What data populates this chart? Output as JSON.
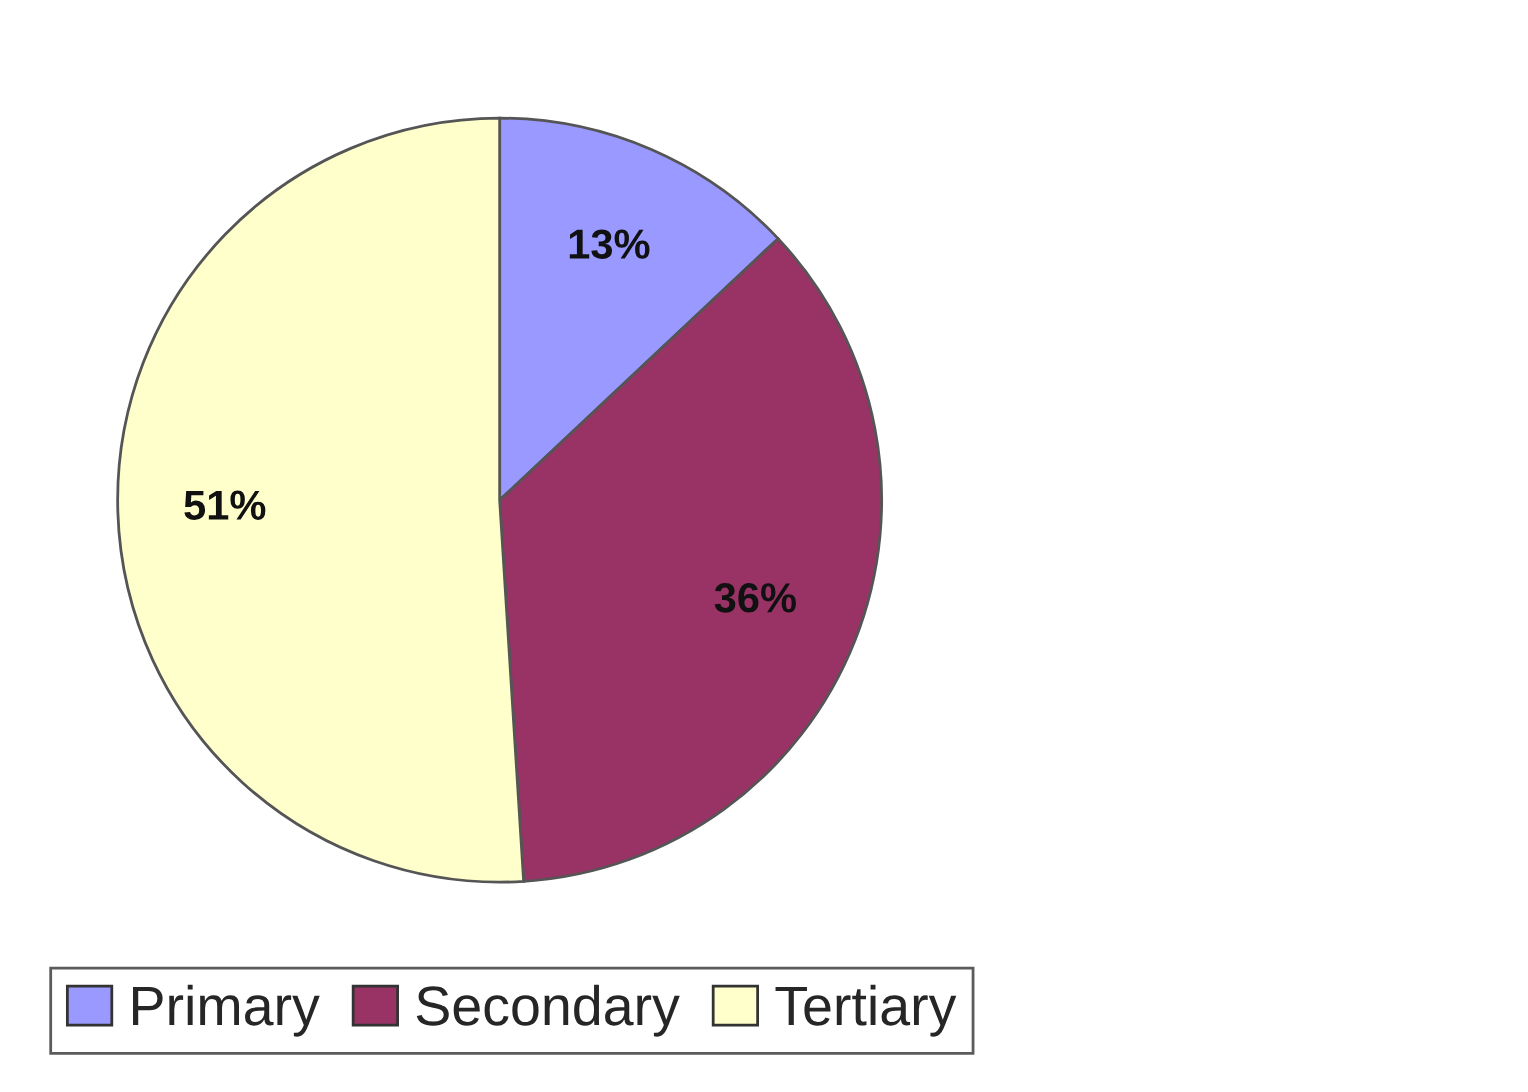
{
  "chart_data": {
    "type": "pie",
    "categories": [
      "Primary",
      "Secondary",
      "Tertiary"
    ],
    "values": [
      13,
      36,
      51
    ],
    "colors": [
      "#9999ff",
      "#993366",
      "#ffffcc"
    ],
    "value_labels": [
      "13%",
      "36%",
      "51%"
    ],
    "legend": "bottom"
  }
}
